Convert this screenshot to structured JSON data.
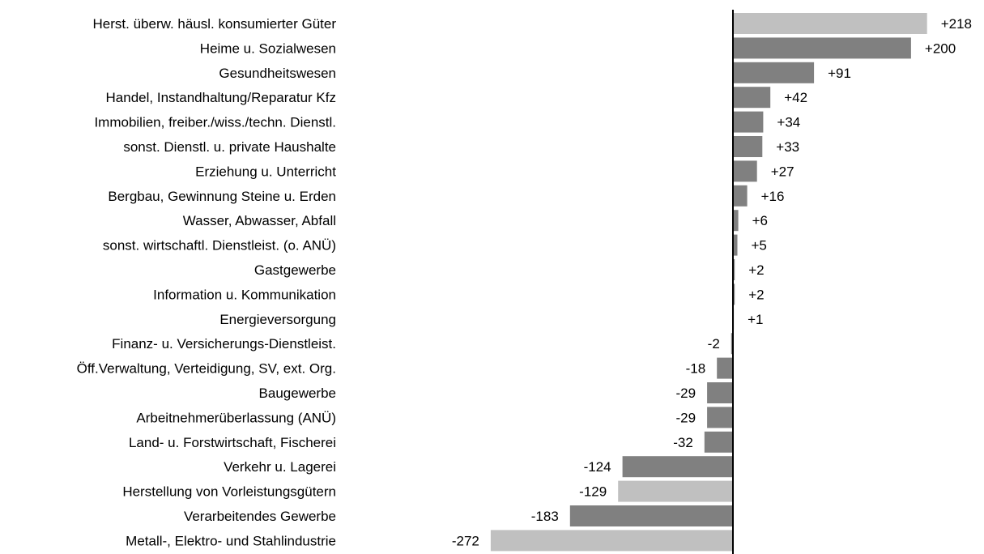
{
  "chart_data": {
    "type": "bar",
    "orientation": "horizontal",
    "title": "",
    "xlabel": "",
    "ylabel": "",
    "categories": [
      "Herst. überw. häusl. konsumierter Güter",
      "Heime u. Sozialwesen",
      "Gesundheitswesen",
      "Handel, Instandhaltung/Reparatur Kfz",
      "Immobilien, freiber./wiss./techn. Dienstl.",
      "sonst. Dienstl. u. private Haushalte",
      "Erziehung u. Unterricht",
      "Bergbau, Gewinnung Steine u. Erden",
      "Wasser, Abwasser, Abfall",
      "sonst. wirtschaftl. Dienstleist. (o. ANÜ)",
      "Gastgewerbe",
      "Information u. Kommunikation",
      "Energieversorgung",
      "Finanz- u. Versicherungs-Dienstleist.",
      "Öff.Verwaltung, Verteidigung, SV, ext. Org.",
      "Baugewerbe",
      "Arbeitnehmerüberlassung (ANÜ)",
      "Land- u. Forstwirtschaft, Fischerei",
      "Verkehr u. Lagerei",
      "Herstellung von Vorleistungsgütern",
      "Verarbeitendes Gewerbe",
      "Metall-, Elektro- und Stahlindustrie"
    ],
    "values": [
      218,
      200,
      91,
      42,
      34,
      33,
      27,
      16,
      6,
      5,
      2,
      2,
      1,
      -2,
      -18,
      -29,
      -29,
      -32,
      -124,
      -129,
      -183,
      -272
    ],
    "value_labels": [
      "+218",
      "+200",
      "+91",
      "+42",
      "+34",
      "+33",
      "+27",
      "+16",
      "+6",
      "+5",
      "+2",
      "+2",
      "+1",
      "-2",
      "-18",
      "-29",
      "-29",
      "-32",
      "-124",
      "-129",
      "-183",
      "-272"
    ],
    "highlighted": [
      true,
      false,
      false,
      false,
      false,
      false,
      false,
      false,
      false,
      false,
      false,
      false,
      false,
      false,
      false,
      false,
      false,
      false,
      false,
      true,
      false,
      true
    ],
    "colors": {
      "bar": "#808080",
      "highlight": "#c0c0c0",
      "axis": "#000000",
      "text": "#000000"
    },
    "xlim": [
      -272,
      218
    ],
    "grid": false,
    "legend": "none"
  }
}
